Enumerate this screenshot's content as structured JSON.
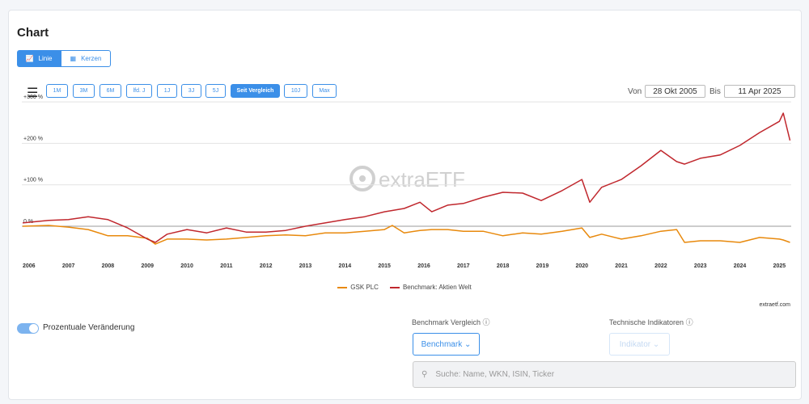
{
  "header": {
    "title": "Chart"
  },
  "view_toggle": [
    "Linie",
    "Kerzen"
  ],
  "ranges": [
    "1M",
    "3M",
    "6M",
    "lfd. J",
    "1J",
    "3J",
    "5J",
    "Seit Vergleich",
    "10J",
    "Max"
  ],
  "date_range": {
    "from_label": "Von",
    "from": "28 Okt 2005",
    "to_label": "Bis",
    "to": "11 Apr 2025"
  },
  "chart_data": {
    "type": "line",
    "watermark": "extraETF",
    "x": [
      2005.84,
      2006.5,
      2007.0,
      2007.5,
      2008.0,
      2008.5,
      2009.0,
      2009.2,
      2009.5,
      2010.0,
      2010.5,
      2011.0,
      2011.5,
      2012.0,
      2012.5,
      2013.0,
      2013.5,
      2014.0,
      2014.5,
      2015.0,
      2015.2,
      2015.5,
      2015.9,
      2016.2,
      2016.6,
      2017.0,
      2017.5,
      2018.0,
      2018.5,
      2018.97,
      2019.5,
      2020.0,
      2020.2,
      2020.5,
      2021.0,
      2021.5,
      2022.0,
      2022.4,
      2022.6,
      2023.0,
      2023.5,
      2024.0,
      2024.5,
      2025.0,
      2025.1,
      2025.27
    ],
    "series": [
      {
        "name": "GSK PLC",
        "color": "#e8890c",
        "values": [
          0,
          2,
          -2,
          -8,
          -23,
          -23,
          -29,
          -43,
          -31,
          -31,
          -33,
          -31,
          -27,
          -23,
          -21,
          -23,
          -16,
          -16,
          -12,
          -8,
          2,
          -16,
          -10,
          -8,
          -8,
          -12,
          -12,
          -23,
          -16,
          -19,
          -12,
          -4,
          -27,
          -19,
          -31,
          -23,
          -12,
          -8,
          -39,
          -35,
          -35,
          -39,
          -27,
          -31,
          -33,
          -39
        ]
      },
      {
        "name": "Benchmark: Aktien Welt",
        "color": "#c0272d",
        "values": [
          8,
          14,
          16,
          23,
          16,
          -4,
          -31,
          -39,
          -19,
          -8,
          -16,
          -4,
          -14,
          -14,
          -10,
          0,
          8,
          16,
          23,
          35,
          38,
          43,
          58,
          35,
          51,
          55,
          70,
          82,
          80,
          62,
          86,
          113,
          58,
          94,
          113,
          146,
          183,
          156,
          150,
          164,
          172,
          195,
          226,
          253,
          273,
          207
        ]
      }
    ],
    "xlim": [
      2005.82,
      2025.3
    ],
    "xticks": [
      2006,
      2007,
      2008,
      2009,
      2010,
      2011,
      2012,
      2013,
      2014,
      2015,
      2016,
      2017,
      2018,
      2019,
      2020,
      2021,
      2022,
      2023,
      2024,
      2025
    ],
    "ylim": [
      -75,
      310
    ],
    "yticks": [
      {
        "value": 300,
        "label": "+300 %"
      },
      {
        "value": 200,
        "label": "+200 %"
      },
      {
        "value": 100,
        "label": "+100 %"
      },
      {
        "value": 0,
        "label": "0 %"
      }
    ],
    "grid": true
  },
  "source": "extraetf.com",
  "controls": {
    "percent_toggle": "Prozentuale Veränderung",
    "benchmark_label": "Benchmark Vergleich",
    "benchmark_button": "Benchmark",
    "indicator_label": "Technische Indikatoren",
    "indicator_button": "Indikator",
    "search_placeholder": "Suche: Name, WKN, ISIN, Ticker"
  }
}
